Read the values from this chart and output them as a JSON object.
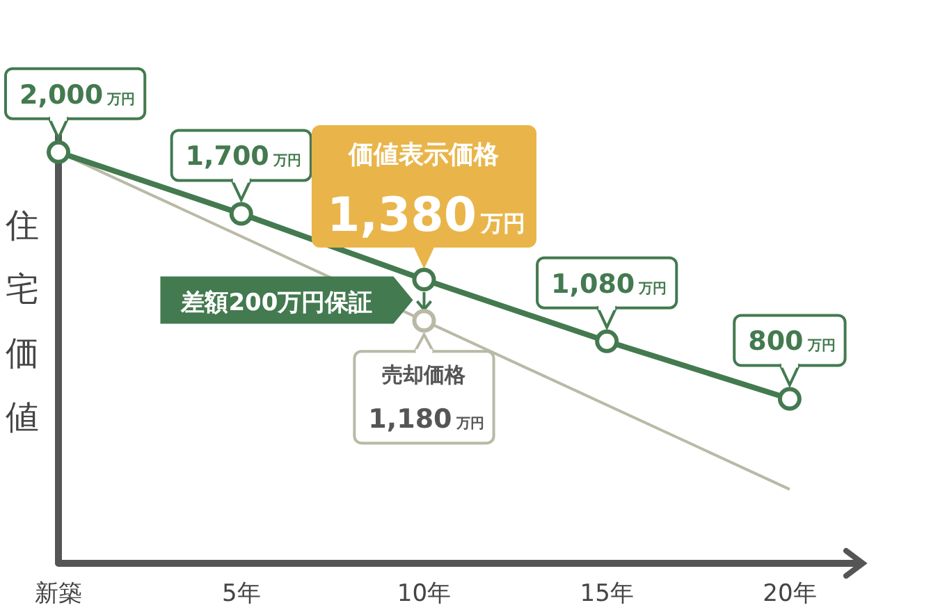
{
  "chart_data": {
    "type": "line",
    "ylabel": "住宅価値",
    "x": [
      0,
      5,
      10,
      15,
      20
    ],
    "xlim": [
      0,
      22
    ],
    "ylim": [
      0,
      2300
    ],
    "xticks": [
      {
        "value": 0,
        "label": "新築"
      },
      {
        "value": 5,
        "label": "5年"
      },
      {
        "value": 10,
        "label": "10年"
      },
      {
        "value": 15,
        "label": "15年"
      },
      {
        "value": 20,
        "label": "20年"
      }
    ],
    "series": [
      {
        "color": "#437a4f",
        "marker": "circle",
        "values": [
          2000,
          1700,
          1380,
          1080,
          800
        ],
        "value_labels": [
          "2,000万円",
          "1,700万円",
          "1,380万円",
          "1,080万円",
          "800万円"
        ]
      },
      {
        "color": "#b9b9a6",
        "x": [
          0,
          10,
          20
        ],
        "values": [
          2000,
          1180,
          360
        ],
        "value_labels": [
          null,
          "1,180万円",
          null
        ]
      }
    ],
    "annotations": [
      "価値表示価格",
      "売却価格",
      "差額200万円保証"
    ]
  }
}
